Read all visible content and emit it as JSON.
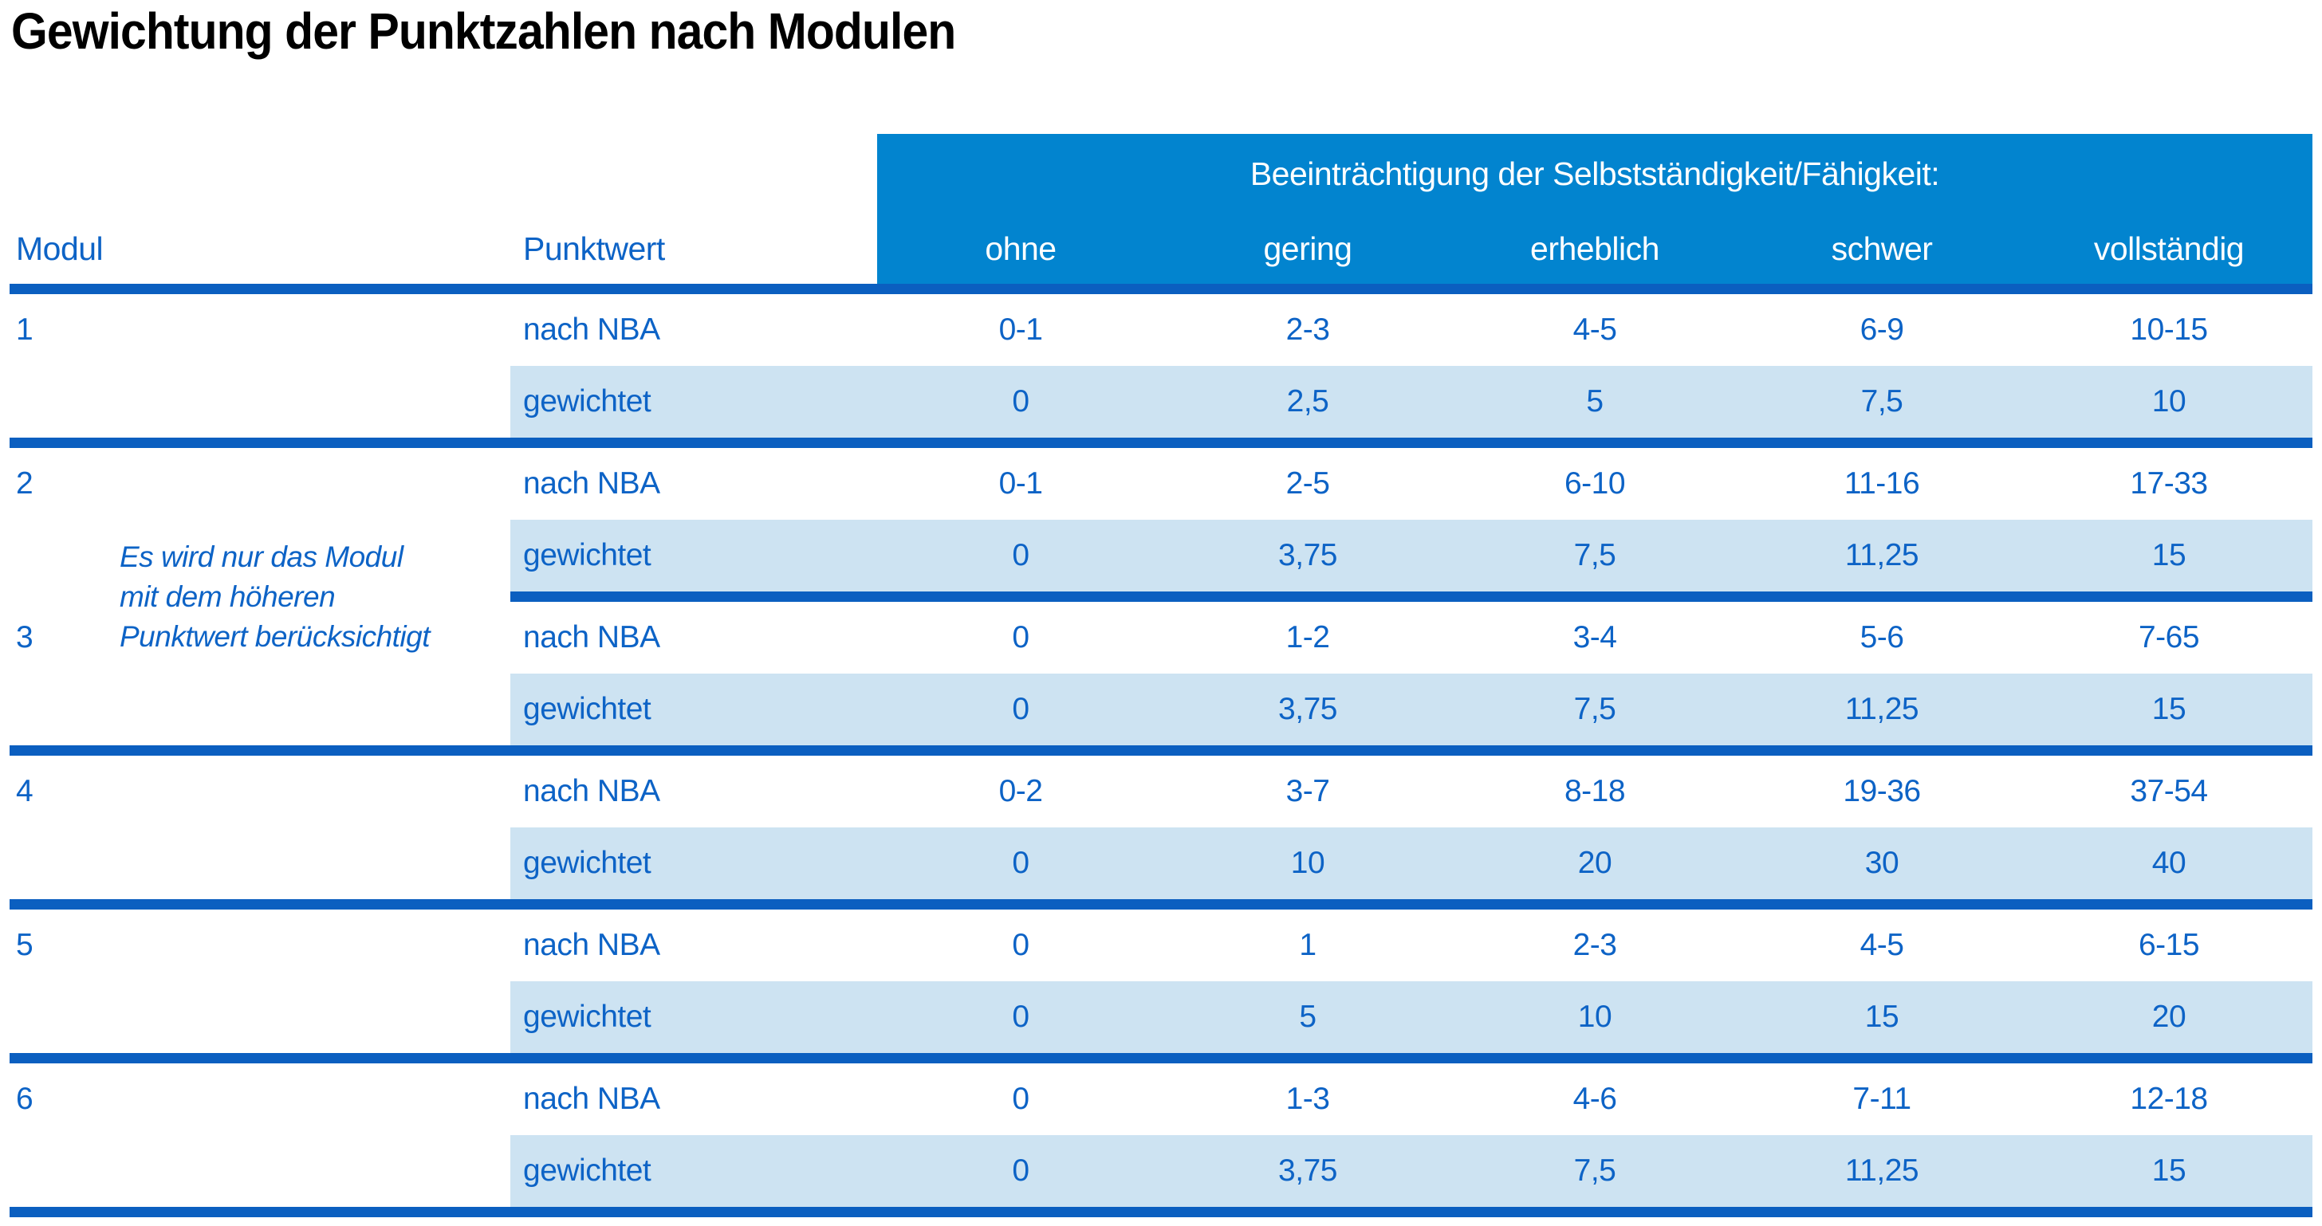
{
  "title": "Gewichtung der Punktzahlen nach Modulen",
  "colors": {
    "header_bg": "#0284CF",
    "row_alt_bg": "#CDE3F2",
    "rule": "#0B5FC0",
    "text_blue": "#0D63C6",
    "header_text": "#FFFFFF",
    "title_text": "#000000"
  },
  "table": {
    "col_modul": "Modul",
    "col_punktwert": "Punktwert",
    "impairment_header": "Beeinträchtigung der Selbstständigkeit/Fähigkeit:",
    "severity_columns": [
      "ohne",
      "gering",
      "erheblich",
      "schwer",
      "vollständig"
    ],
    "row_labels": {
      "nba": "nach NBA",
      "weighted": "gewichtet"
    },
    "note_lines": [
      "Es wird nur das Modul",
      "mit dem höheren",
      "Punktwert berücksichtigt"
    ],
    "modules": [
      {
        "modul": "1",
        "nach_nba": [
          "0-1",
          "2-3",
          "4-5",
          "6-9",
          "10-15"
        ],
        "gewichtet": [
          "0",
          "2,5",
          "5",
          "7,5",
          "10"
        ]
      },
      {
        "modul": "2",
        "nach_nba": [
          "0-1",
          "2-5",
          "6-10",
          "11-16",
          "17-33"
        ],
        "gewichtet": [
          "0",
          "3,75",
          "7,5",
          "11,25",
          "15"
        ]
      },
      {
        "modul": "3",
        "nach_nba": [
          "0",
          "1-2",
          "3-4",
          "5-6",
          "7-65"
        ],
        "gewichtet": [
          "0",
          "3,75",
          "7,5",
          "11,25",
          "15"
        ]
      },
      {
        "modul": "4",
        "nach_nba": [
          "0-2",
          "3-7",
          "8-18",
          "19-36",
          "37-54"
        ],
        "gewichtet": [
          "0",
          "10",
          "20",
          "30",
          "40"
        ]
      },
      {
        "modul": "5",
        "nach_nba": [
          "0",
          "1",
          "2-3",
          "4-5",
          "6-15"
        ],
        "gewichtet": [
          "0",
          "5",
          "10",
          "15",
          "20"
        ]
      },
      {
        "modul": "6",
        "nach_nba": [
          "0",
          "1-3",
          "4-6",
          "7-11",
          "12-18"
        ],
        "gewichtet": [
          "0",
          "3,75",
          "7,5",
          "11,25",
          "15"
        ]
      }
    ]
  }
}
